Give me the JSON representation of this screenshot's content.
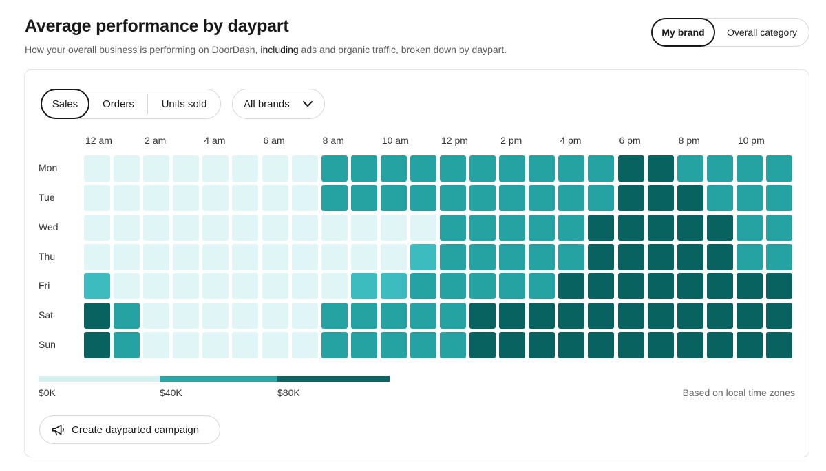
{
  "header": {
    "title": "Average performance by daypart",
    "subtitle_pre": "How your overall business is performing on DoorDash, ",
    "subtitle_strong": "including",
    "subtitle_post": " ads and organic traffic, broken down by daypart."
  },
  "scope_toggle": {
    "options": [
      "My brand",
      "Overall category"
    ],
    "selected": "My brand"
  },
  "metric_toggle": {
    "options": [
      "Sales",
      "Orders",
      "Units sold"
    ],
    "selected": "Sales"
  },
  "brand_filter": {
    "selected": "All brands",
    "icon": "chevron-down-icon"
  },
  "chart_data": {
    "type": "heatmap",
    "x_tick_labels": [
      "12 am",
      "2 am",
      "4 am",
      "6 am",
      "8 am",
      "10 am",
      "12 pm",
      "2 pm",
      "4 pm",
      "6 pm",
      "8 pm",
      "10 pm"
    ],
    "x_tick_hours": [
      0,
      2,
      4,
      6,
      8,
      10,
      12,
      14,
      16,
      18,
      20,
      22
    ],
    "y_labels": [
      "Mon",
      "Tue",
      "Wed",
      "Thu",
      "Fri",
      "Sat",
      "Sun"
    ],
    "hours": [
      0,
      1,
      2,
      3,
      4,
      5,
      6,
      7,
      8,
      9,
      10,
      11,
      12,
      13,
      14,
      15,
      16,
      17,
      18,
      19,
      20,
      21,
      22,
      23
    ],
    "values": [
      [
        0,
        0,
        0,
        0,
        0,
        0,
        0,
        0,
        3,
        3,
        3,
        3,
        3,
        3,
        3,
        3,
        3,
        3,
        4,
        4,
        3,
        3,
        3,
        3
      ],
      [
        0,
        0,
        0,
        0,
        0,
        0,
        0,
        0,
        3,
        3,
        3,
        3,
        3,
        3,
        3,
        3,
        3,
        3,
        4,
        4,
        4,
        3,
        3,
        3
      ],
      [
        0,
        0,
        0,
        0,
        0,
        0,
        0,
        0,
        0,
        0,
        0,
        0,
        3,
        3,
        3,
        3,
        3,
        4,
        4,
        4,
        4,
        4,
        3,
        3
      ],
      [
        0,
        0,
        0,
        0,
        0,
        0,
        0,
        0,
        0,
        0,
        0,
        2,
        3,
        3,
        3,
        3,
        3,
        4,
        4,
        4,
        4,
        4,
        3,
        3
      ],
      [
        2,
        0,
        0,
        0,
        0,
        0,
        0,
        0,
        0,
        2,
        2,
        3,
        3,
        3,
        3,
        3,
        4,
        4,
        4,
        4,
        4,
        4,
        4,
        4
      ],
      [
        4,
        3,
        0,
        0,
        0,
        0,
        0,
        0,
        3,
        3,
        3,
        3,
        3,
        4,
        4,
        4,
        4,
        4,
        4,
        4,
        4,
        4,
        4,
        4
      ],
      [
        4,
        3,
        0,
        0,
        0,
        0,
        0,
        0,
        3,
        3,
        3,
        3,
        3,
        4,
        4,
        4,
        4,
        4,
        4,
        4,
        4,
        4,
        4,
        4
      ]
    ],
    "color_levels": [
      "#e0f5f5",
      "#c2ebeb",
      "#3dbcc0",
      "#25a3a3",
      "#08625f"
    ],
    "legend": {
      "labels": [
        "$0K",
        "$40K",
        "$80K"
      ],
      "colors": [
        "#d4f1f0",
        "#29a8a9",
        "#0a6664"
      ]
    },
    "xlabel": "",
    "ylabel": ""
  },
  "timezone_note": "Based on local time zones",
  "campaign_button": {
    "label": "Create dayparted campaign",
    "icon": "megaphone-icon"
  }
}
